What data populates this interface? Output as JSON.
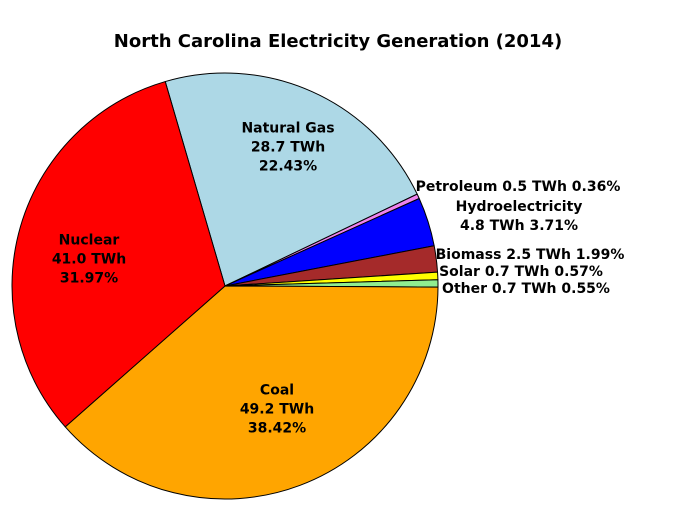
{
  "chart_data": {
    "type": "pie",
    "title": "North Carolina Electricity Generation (2014)",
    "unit": "TWh",
    "background_color": "#FFFFFF",
    "text_color": "#000000",
    "edge_color": "#000000",
    "start_angle_deg": 106.3,
    "direction": "clockwise",
    "legend": "none",
    "slices": [
      {
        "name": "Natural Gas",
        "value_twh": 28.7,
        "percent": 22.43,
        "color": "#ADD8E6",
        "label_position": "inside",
        "label_lines": [
          "Natural Gas",
          "28.7 TWh",
          "22.43%"
        ]
      },
      {
        "name": "Petroleum",
        "value_twh": 0.5,
        "percent": 0.36,
        "color": "#EE82EE",
        "label_position": "outside-right",
        "label_lines": [
          "Petroleum 0.5 TWh 0.36%"
        ]
      },
      {
        "name": "Hydroelectricity",
        "value_twh": 4.8,
        "percent": 3.71,
        "color": "#0000FF",
        "label_position": "outside-right",
        "label_lines": [
          "Hydroelectricity",
          "4.8 TWh 3.71%"
        ]
      },
      {
        "name": "Biomass",
        "value_twh": 2.5,
        "percent": 1.99,
        "color": "#A52A2A",
        "label_position": "outside-right",
        "label_lines": [
          "Biomass 2.5 TWh 1.99%"
        ]
      },
      {
        "name": "Solar",
        "value_twh": 0.7,
        "percent": 0.57,
        "color": "#FFFF00",
        "label_position": "outside-right",
        "label_lines": [
          "Solar 0.7 TWh 0.57%"
        ]
      },
      {
        "name": "Other",
        "value_twh": 0.7,
        "percent": 0.55,
        "color": "#90EE90",
        "label_position": "outside-right",
        "label_lines": [
          "Other 0.7 TWh 0.55%"
        ]
      },
      {
        "name": "Coal",
        "value_twh": 49.2,
        "percent": 38.42,
        "color": "#FFA500",
        "label_position": "inside",
        "label_lines": [
          "Coal",
          "49.2 TWh",
          "38.42%"
        ]
      },
      {
        "name": "Nuclear",
        "value_twh": 41.0,
        "percent": 31.97,
        "color": "#FF0000",
        "label_position": "inside",
        "label_lines": [
          "Nuclear",
          "41.0 TWh",
          "31.97%"
        ]
      }
    ]
  }
}
